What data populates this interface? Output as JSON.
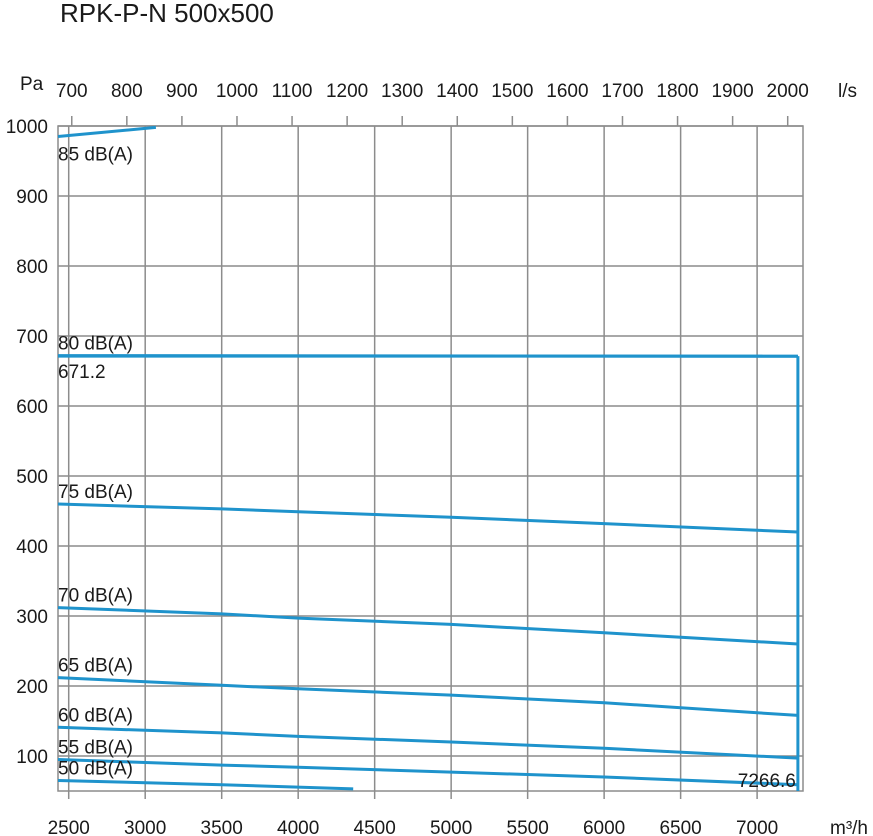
{
  "chart_data": {
    "type": "line",
    "title": "RPK-P-N 500x500",
    "y_unit": "Pa",
    "x_unit_bottom": "m³/h",
    "x_unit_top": "l/s",
    "ylim": [
      50,
      1000
    ],
    "xlim": [
      2430,
      7300
    ],
    "y_ticks": [
      100,
      200,
      300,
      400,
      500,
      600,
      700,
      800,
      900,
      1000
    ],
    "x_ticks_bottom": [
      2500,
      3000,
      3500,
      4000,
      4500,
      5000,
      5500,
      6000,
      6500,
      7000
    ],
    "x_ticks_top_ls": [
      700,
      800,
      900,
      1000,
      1100,
      1200,
      1300,
      1400,
      1500,
      1600,
      1700,
      1800,
      1900,
      2000
    ],
    "grid": true,
    "series": [
      {
        "name": "85 dB(A)",
        "x": [
          2430,
          3070
        ],
        "y": [
          985,
          998
        ]
      },
      {
        "name": "80 dB(A)",
        "x": [
          2430,
          7266.6
        ],
        "y": [
          672,
          671
        ]
      },
      {
        "name": "75 dB(A)",
        "x": [
          2430,
          3500,
          4000,
          5000,
          6000,
          7266.6
        ],
        "y": [
          460,
          453,
          449,
          441,
          432,
          420
        ]
      },
      {
        "name": "70 dB(A)",
        "x": [
          2430,
          3500,
          4000,
          5000,
          6000,
          7266.6
        ],
        "y": [
          312,
          303,
          297,
          288,
          276,
          260
        ]
      },
      {
        "name": "65 dB(A)",
        "x": [
          2430,
          3500,
          4000,
          5000,
          6000,
          7266.6
        ],
        "y": [
          212,
          201,
          196,
          187,
          176,
          158
        ]
      },
      {
        "name": "60 dB(A)",
        "x": [
          2430,
          3500,
          4000,
          5000,
          6000,
          7266.6
        ],
        "y": [
          141,
          133,
          128,
          120,
          111,
          97
        ]
      },
      {
        "name": "55 dB(A)",
        "x": [
          2430,
          3500,
          4000,
          5000,
          6000,
          7266.6
        ],
        "y": [
          95,
          87,
          84,
          77,
          70,
          59
        ]
      },
      {
        "name": "50 dB(A)",
        "x": [
          2430,
          3500,
          4360
        ],
        "y": [
          65,
          59,
          53
        ]
      }
    ],
    "operating_point": {
      "x": 7266.6,
      "y": 671.2,
      "x_label": "7266.6",
      "y_label": "671.2"
    }
  }
}
